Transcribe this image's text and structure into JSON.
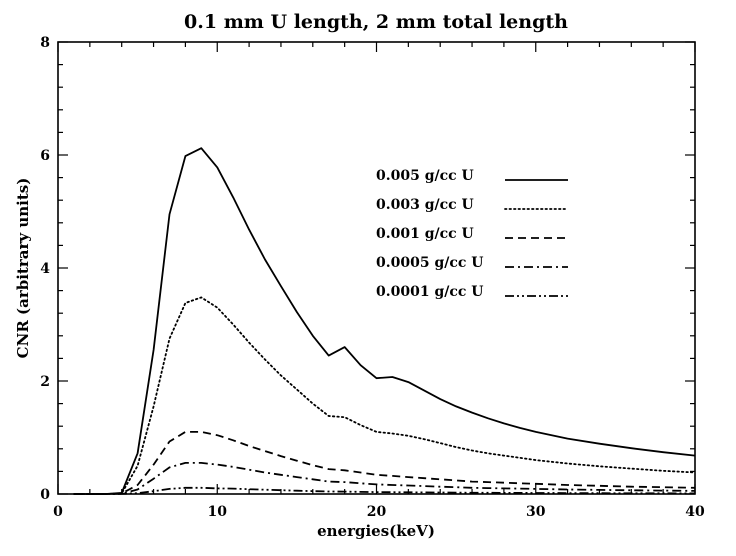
{
  "chart_data": {
    "type": "line",
    "title": "0.1 mm U length, 2 mm total length",
    "xlabel": "energies(keV)",
    "ylabel": "CNR (arbitrary units)",
    "xlim": [
      0,
      40
    ],
    "ylim": [
      0,
      8
    ],
    "x_ticks": [
      "0",
      "10",
      "20",
      "30",
      "40"
    ],
    "y_ticks": [
      "0",
      "2",
      "4",
      "6",
      "8"
    ],
    "grid": false,
    "legend_position": "upper-right",
    "series": [
      {
        "name": "0.005 g/cc U",
        "style": "solid",
        "x": [
          1,
          2,
          3,
          4,
          5,
          6,
          7,
          8,
          9,
          10,
          11,
          12,
          13,
          14,
          15,
          16,
          17,
          18,
          19,
          20,
          21,
          22,
          23,
          24,
          25,
          26,
          27,
          28,
          29,
          30,
          32,
          34,
          36,
          38,
          40
        ],
        "y": [
          0,
          0,
          0,
          0.02,
          0.72,
          2.55,
          4.95,
          5.98,
          6.12,
          5.78,
          5.25,
          4.68,
          4.15,
          3.68,
          3.22,
          2.8,
          2.45,
          2.6,
          2.28,
          2.05,
          2.07,
          1.98,
          1.83,
          1.68,
          1.55,
          1.44,
          1.34,
          1.25,
          1.17,
          1.1,
          0.98,
          0.89,
          0.81,
          0.74,
          0.68
        ]
      },
      {
        "name": "0.003 g/cc U",
        "style": "dotted",
        "x": [
          1,
          2,
          3,
          4,
          5,
          6,
          7,
          8,
          9,
          10,
          11,
          12,
          13,
          14,
          15,
          16,
          17,
          18,
          19,
          20,
          21,
          22,
          23,
          24,
          25,
          26,
          27,
          28,
          29,
          30,
          32,
          34,
          36,
          38,
          40
        ],
        "y": [
          0,
          0,
          0,
          0.01,
          0.5,
          1.55,
          2.75,
          3.38,
          3.48,
          3.3,
          3.0,
          2.68,
          2.38,
          2.1,
          1.85,
          1.6,
          1.38,
          1.36,
          1.22,
          1.1,
          1.07,
          1.03,
          0.97,
          0.9,
          0.83,
          0.77,
          0.72,
          0.68,
          0.64,
          0.6,
          0.54,
          0.49,
          0.45,
          0.41,
          0.38
        ]
      },
      {
        "name": "0.001 g/cc U",
        "style": "dashed",
        "x": [
          1,
          2,
          3,
          4,
          5,
          6,
          7,
          8,
          9,
          10,
          11,
          12,
          13,
          14,
          15,
          16,
          17,
          18,
          19,
          20,
          21,
          22,
          23,
          24,
          25,
          26,
          27,
          28,
          29,
          30,
          32,
          34,
          36,
          38,
          40
        ],
        "y": [
          0,
          0,
          0,
          0.01,
          0.16,
          0.52,
          0.93,
          1.1,
          1.1,
          1.04,
          0.95,
          0.85,
          0.76,
          0.67,
          0.59,
          0.51,
          0.44,
          0.42,
          0.38,
          0.34,
          0.32,
          0.3,
          0.28,
          0.26,
          0.24,
          0.22,
          0.21,
          0.2,
          0.19,
          0.18,
          0.16,
          0.145,
          0.13,
          0.12,
          0.11
        ]
      },
      {
        "name": "0.0005 g/cc U",
        "style": "dashdot",
        "x": [
          1,
          2,
          3,
          4,
          5,
          6,
          7,
          8,
          9,
          10,
          11,
          12,
          13,
          14,
          15,
          16,
          17,
          18,
          19,
          20,
          21,
          22,
          23,
          24,
          25,
          26,
          27,
          28,
          29,
          30,
          32,
          34,
          36,
          38,
          40
        ],
        "y": [
          0,
          0,
          0,
          0.005,
          0.08,
          0.27,
          0.47,
          0.55,
          0.55,
          0.52,
          0.48,
          0.43,
          0.38,
          0.34,
          0.3,
          0.26,
          0.22,
          0.21,
          0.19,
          0.17,
          0.16,
          0.15,
          0.14,
          0.13,
          0.12,
          0.11,
          0.105,
          0.1,
          0.095,
          0.09,
          0.08,
          0.072,
          0.065,
          0.06,
          0.055
        ]
      },
      {
        "name": "0.0001 g/cc U",
        "style": "dashdotdot",
        "x": [
          1,
          2,
          3,
          4,
          5,
          6,
          7,
          8,
          9,
          10,
          11,
          12,
          13,
          14,
          15,
          16,
          17,
          18,
          19,
          20,
          21,
          22,
          23,
          24,
          25,
          26,
          27,
          28,
          29,
          30,
          32,
          34,
          36,
          38,
          40
        ],
        "y": [
          0,
          0,
          0,
          0.001,
          0.015,
          0.05,
          0.09,
          0.11,
          0.11,
          0.1,
          0.095,
          0.085,
          0.076,
          0.067,
          0.059,
          0.051,
          0.044,
          0.042,
          0.038,
          0.034,
          0.032,
          0.03,
          0.028,
          0.026,
          0.024,
          0.022,
          0.021,
          0.02,
          0.019,
          0.018,
          0.016,
          0.015,
          0.013,
          0.012,
          0.011
        ]
      }
    ]
  }
}
